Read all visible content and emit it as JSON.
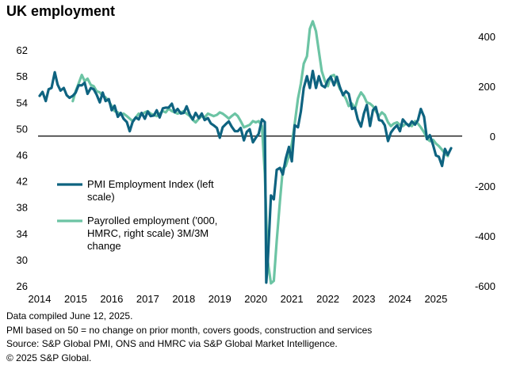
{
  "title": "UK employment",
  "footnotes": [
    "Data compiled June 12, 2025.",
    "PMI based on 50 = no change on prior month, covers goods, construction and services",
    "Source: S&P Global PMI, ONS and HMRC via S&P Global Market Intelligence.",
    "© 2025 S&P Global."
  ],
  "chart_data": {
    "type": "line",
    "x_ticks": [
      "2014",
      "2015",
      "2016",
      "2017",
      "2018",
      "2019",
      "2020",
      "2021",
      "2022",
      "2023",
      "2024",
      "2025"
    ],
    "y_left": {
      "ticks": [
        26,
        30,
        34,
        38,
        42,
        46,
        50,
        54,
        58,
        62
      ],
      "lim": [
        26,
        66
      ]
    },
    "y_right": {
      "ticks": [
        -600,
        -400,
        -200,
        0,
        200,
        400
      ],
      "lim": [
        -600,
        450
      ]
    },
    "zero_line": 0,
    "legend_placement": "left-center",
    "colors": {
      "pmi": "#0e6380",
      "payroll": "#6cc4a4",
      "zero_line": "#000000"
    },
    "series": [
      {
        "key": "pmi",
        "name": "PMI Employment Index (left scale)",
        "axis": "left",
        "color": "#0e6380",
        "points": [
          [
            2014.0,
            55.0
          ],
          [
            2014.08,
            55.6
          ],
          [
            2014.17,
            54.2
          ],
          [
            2014.25,
            56.0
          ],
          [
            2014.33,
            56.2
          ],
          [
            2014.42,
            58.6
          ],
          [
            2014.5,
            56.7
          ],
          [
            2014.58,
            55.8
          ],
          [
            2014.67,
            56.2
          ],
          [
            2014.75,
            55.1
          ],
          [
            2014.83,
            54.7
          ],
          [
            2014.92,
            55.0
          ],
          [
            2015.0,
            55.5
          ],
          [
            2015.08,
            56.6
          ],
          [
            2015.17,
            56.6
          ],
          [
            2015.25,
            57.0
          ],
          [
            2015.33,
            55.3
          ],
          [
            2015.42,
            56.2
          ],
          [
            2015.5,
            56.0
          ],
          [
            2015.58,
            55.2
          ],
          [
            2015.67,
            54.0
          ],
          [
            2015.75,
            55.5
          ],
          [
            2015.83,
            54.2
          ],
          [
            2015.92,
            54.5
          ],
          [
            2016.0,
            52.8
          ],
          [
            2016.08,
            53.5
          ],
          [
            2016.17,
            51.8
          ],
          [
            2016.25,
            52.4
          ],
          [
            2016.33,
            51.5
          ],
          [
            2016.42,
            51.0
          ],
          [
            2016.5,
            49.6
          ],
          [
            2016.58,
            51.0
          ],
          [
            2016.67,
            51.7
          ],
          [
            2016.75,
            51.4
          ],
          [
            2016.83,
            52.4
          ],
          [
            2016.92,
            51.5
          ],
          [
            2017.0,
            52.6
          ],
          [
            2017.08,
            51.9
          ],
          [
            2017.17,
            52.0
          ],
          [
            2017.25,
            52.8
          ],
          [
            2017.33,
            51.7
          ],
          [
            2017.42,
            53.1
          ],
          [
            2017.5,
            53.2
          ],
          [
            2017.58,
            53.2
          ],
          [
            2017.67,
            53.8
          ],
          [
            2017.75,
            52.5
          ],
          [
            2017.83,
            53.0
          ],
          [
            2017.92,
            52.3
          ],
          [
            2018.0,
            52.4
          ],
          [
            2018.08,
            53.4
          ],
          [
            2018.17,
            52.1
          ],
          [
            2018.25,
            51.4
          ],
          [
            2018.33,
            52.4
          ],
          [
            2018.42,
            51.6
          ],
          [
            2018.5,
            52.3
          ],
          [
            2018.58,
            51.3
          ],
          [
            2018.67,
            51.6
          ],
          [
            2018.75,
            50.8
          ],
          [
            2018.83,
            50.5
          ],
          [
            2018.92,
            50.1
          ],
          [
            2019.0,
            48.6
          ],
          [
            2019.08,
            50.2
          ],
          [
            2019.17,
            50.7
          ],
          [
            2019.25,
            51.1
          ],
          [
            2019.33,
            50.3
          ],
          [
            2019.42,
            49.6
          ],
          [
            2019.5,
            49.6
          ],
          [
            2019.58,
            50.1
          ],
          [
            2019.67,
            48.2
          ],
          [
            2019.75,
            49.5
          ],
          [
            2019.83,
            49.9
          ],
          [
            2019.92,
            47.9
          ],
          [
            2020.0,
            48.6
          ],
          [
            2020.08,
            49.2
          ],
          [
            2020.17,
            51.4
          ],
          [
            2020.25,
            51.0
          ],
          [
            2020.29,
            26.5
          ],
          [
            2020.33,
            29.5
          ],
          [
            2020.42,
            39.8
          ],
          [
            2020.5,
            39.2
          ],
          [
            2020.58,
            43.7
          ],
          [
            2020.67,
            44.0
          ],
          [
            2020.75,
            43.0
          ],
          [
            2020.83,
            45.4
          ],
          [
            2020.92,
            47.2
          ],
          [
            2021.0,
            45.0
          ],
          [
            2021.08,
            50.5
          ],
          [
            2021.17,
            50.2
          ],
          [
            2021.25,
            52.6
          ],
          [
            2021.33,
            56.2
          ],
          [
            2021.42,
            58.0
          ],
          [
            2021.5,
            56.2
          ],
          [
            2021.58,
            58.8
          ],
          [
            2021.67,
            56.2
          ],
          [
            2021.75,
            58.0
          ],
          [
            2021.83,
            56.6
          ],
          [
            2021.92,
            56.3
          ],
          [
            2022.0,
            57.4
          ],
          [
            2022.08,
            57.9
          ],
          [
            2022.17,
            56.6
          ],
          [
            2022.25,
            57.9
          ],
          [
            2022.33,
            56.4
          ],
          [
            2022.42,
            55.1
          ],
          [
            2022.5,
            55.7
          ],
          [
            2022.58,
            55.3
          ],
          [
            2022.67,
            53.0
          ],
          [
            2022.75,
            53.2
          ],
          [
            2022.83,
            51.4
          ],
          [
            2022.92,
            50.3
          ],
          [
            2023.0,
            52.3
          ],
          [
            2023.08,
            53.6
          ],
          [
            2023.17,
            50.4
          ],
          [
            2023.25,
            52.8
          ],
          [
            2023.33,
            53.3
          ],
          [
            2023.42,
            51.3
          ],
          [
            2023.5,
            51.2
          ],
          [
            2023.58,
            50.5
          ],
          [
            2023.67,
            48.1
          ],
          [
            2023.75,
            49.4
          ],
          [
            2023.83,
            50.0
          ],
          [
            2023.92,
            50.5
          ],
          [
            2024.0,
            49.6
          ],
          [
            2024.08,
            51.4
          ],
          [
            2024.17,
            50.8
          ],
          [
            2024.25,
            50.4
          ],
          [
            2024.33,
            51.1
          ],
          [
            2024.42,
            50.6
          ],
          [
            2024.5,
            51.3
          ],
          [
            2024.58,
            53.0
          ],
          [
            2024.67,
            51.8
          ],
          [
            2024.75,
            48.4
          ],
          [
            2024.83,
            49.0
          ],
          [
            2024.92,
            47.5
          ],
          [
            2025.0,
            45.9
          ],
          [
            2025.08,
            45.7
          ],
          [
            2025.17,
            44.3
          ],
          [
            2025.25,
            46.9
          ],
          [
            2025.33,
            46.0
          ],
          [
            2025.42,
            47.0
          ]
        ]
      },
      {
        "key": "payroll",
        "name": "Payrolled employment ('000, HMRC, right scale) 3M/3M change",
        "axis": "right",
        "color": "#6cc4a4",
        "points": [
          [
            2014.92,
            140
          ],
          [
            2015.0,
            180
          ],
          [
            2015.08,
            210
          ],
          [
            2015.17,
            245
          ],
          [
            2015.25,
            220
          ],
          [
            2015.33,
            230
          ],
          [
            2015.42,
            205
          ],
          [
            2015.5,
            200
          ],
          [
            2015.58,
            180
          ],
          [
            2015.67,
            175
          ],
          [
            2015.75,
            160
          ],
          [
            2015.83,
            155
          ],
          [
            2015.92,
            140
          ],
          [
            2016.0,
            120
          ],
          [
            2016.08,
            100
          ],
          [
            2016.17,
            95
          ],
          [
            2016.25,
            85
          ],
          [
            2016.33,
            90
          ],
          [
            2016.42,
            80
          ],
          [
            2016.5,
            70
          ],
          [
            2016.58,
            60
          ],
          [
            2016.67,
            75
          ],
          [
            2016.75,
            90
          ],
          [
            2016.83,
            85
          ],
          [
            2016.92,
            95
          ],
          [
            2017.0,
            100
          ],
          [
            2017.08,
            90
          ],
          [
            2017.17,
            85
          ],
          [
            2017.25,
            80
          ],
          [
            2017.33,
            90
          ],
          [
            2017.42,
            100
          ],
          [
            2017.5,
            95
          ],
          [
            2017.58,
            110
          ],
          [
            2017.67,
            100
          ],
          [
            2017.75,
            95
          ],
          [
            2017.83,
            90
          ],
          [
            2017.92,
            95
          ],
          [
            2018.0,
            100
          ],
          [
            2018.08,
            90
          ],
          [
            2018.17,
            80
          ],
          [
            2018.25,
            65
          ],
          [
            2018.33,
            55
          ],
          [
            2018.42,
            70
          ],
          [
            2018.5,
            80
          ],
          [
            2018.58,
            75
          ],
          [
            2018.67,
            90
          ],
          [
            2018.75,
            85
          ],
          [
            2018.83,
            80
          ],
          [
            2018.92,
            85
          ],
          [
            2019.0,
            95
          ],
          [
            2019.08,
            90
          ],
          [
            2019.17,
            80
          ],
          [
            2019.25,
            70
          ],
          [
            2019.33,
            80
          ],
          [
            2019.42,
            90
          ],
          [
            2019.5,
            80
          ],
          [
            2019.58,
            60
          ],
          [
            2019.67,
            35
          ],
          [
            2019.75,
            40
          ],
          [
            2019.83,
            45
          ],
          [
            2019.92,
            60
          ],
          [
            2020.0,
            55
          ],
          [
            2020.08,
            60
          ],
          [
            2020.17,
            40
          ],
          [
            2020.25,
            -150
          ],
          [
            2020.33,
            -500
          ],
          [
            2020.42,
            -590
          ],
          [
            2020.5,
            -580
          ],
          [
            2020.58,
            -420
          ],
          [
            2020.67,
            -260
          ],
          [
            2020.75,
            -130
          ],
          [
            2020.83,
            -120
          ],
          [
            2020.92,
            -80
          ],
          [
            2021.0,
            -30
          ],
          [
            2021.08,
            50
          ],
          [
            2021.17,
            150
          ],
          [
            2021.25,
            210
          ],
          [
            2021.33,
            290
          ],
          [
            2021.42,
            320
          ],
          [
            2021.5,
            430
          ],
          [
            2021.58,
            460
          ],
          [
            2021.67,
            420
          ],
          [
            2021.75,
            340
          ],
          [
            2021.83,
            260
          ],
          [
            2021.92,
            220
          ],
          [
            2022.0,
            200
          ],
          [
            2022.08,
            240
          ],
          [
            2022.17,
            245
          ],
          [
            2022.25,
            220
          ],
          [
            2022.33,
            190
          ],
          [
            2022.42,
            170
          ],
          [
            2022.5,
            150
          ],
          [
            2022.58,
            120
          ],
          [
            2022.67,
            130
          ],
          [
            2022.75,
            110
          ],
          [
            2022.83,
            150
          ],
          [
            2022.92,
            175
          ],
          [
            2023.0,
            160
          ],
          [
            2023.08,
            135
          ],
          [
            2023.17,
            130
          ],
          [
            2023.25,
            120
          ],
          [
            2023.33,
            100
          ],
          [
            2023.42,
            80
          ],
          [
            2023.5,
            95
          ],
          [
            2023.58,
            85
          ],
          [
            2023.67,
            55
          ],
          [
            2023.75,
            40
          ],
          [
            2023.83,
            50
          ],
          [
            2023.92,
            55
          ],
          [
            2024.0,
            45
          ],
          [
            2024.08,
            40
          ],
          [
            2024.17,
            50
          ],
          [
            2024.25,
            45
          ],
          [
            2024.33,
            40
          ],
          [
            2024.42,
            60
          ],
          [
            2024.5,
            50
          ],
          [
            2024.58,
            35
          ],
          [
            2024.67,
            15
          ],
          [
            2024.75,
            -10
          ],
          [
            2024.83,
            -20
          ],
          [
            2024.92,
            -15
          ],
          [
            2025.0,
            -30
          ],
          [
            2025.08,
            -40
          ],
          [
            2025.17,
            -55
          ],
          [
            2025.25,
            -70
          ],
          [
            2025.33,
            -80
          ]
        ]
      }
    ]
  }
}
